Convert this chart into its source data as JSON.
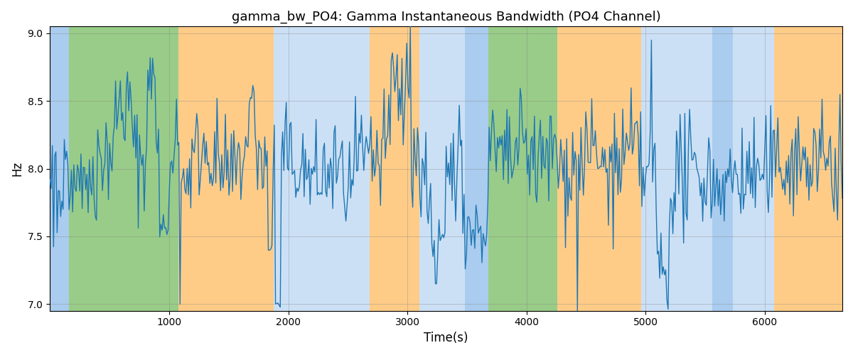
{
  "title": "gamma_bw_PO4: Gamma Instantaneous Bandwidth (PO4 Channel)",
  "xlabel": "Time(s)",
  "ylabel": "Hz",
  "xlim": [
    0,
    6650
  ],
  "ylim": [
    6.95,
    9.05
  ],
  "yticks": [
    7.0,
    7.5,
    8.0,
    8.5,
    9.0
  ],
  "xticks": [
    1000,
    2000,
    3000,
    4000,
    5000,
    6000
  ],
  "line_color": "#1f77b4",
  "line_width": 1.0,
  "bg_color": "#ffffff",
  "color_bands": [
    {
      "xstart": 0,
      "xend": 160,
      "color": "#aaccee"
    },
    {
      "xstart": 160,
      "xend": 1080,
      "color": "#99cc88"
    },
    {
      "xstart": 1080,
      "xend": 1880,
      "color": "#ffcc88"
    },
    {
      "xstart": 1880,
      "xend": 2680,
      "color": "#cce0f5"
    },
    {
      "xstart": 2680,
      "xend": 3100,
      "color": "#ffcc88"
    },
    {
      "xstart": 3100,
      "xend": 3480,
      "color": "#cce0f5"
    },
    {
      "xstart": 3480,
      "xend": 3680,
      "color": "#aaccee"
    },
    {
      "xstart": 3680,
      "xend": 4260,
      "color": "#99cc88"
    },
    {
      "xstart": 4260,
      "xend": 4960,
      "color": "#ffcc88"
    },
    {
      "xstart": 4960,
      "xend": 5560,
      "color": "#cce0f5"
    },
    {
      "xstart": 5560,
      "xend": 5730,
      "color": "#aaccee"
    },
    {
      "xstart": 5730,
      "xend": 6080,
      "color": "#cce0f5"
    },
    {
      "xstart": 6080,
      "xend": 6650,
      "color": "#ffcc88"
    }
  ],
  "seed": 42,
  "n_points": 665,
  "mean": 8.05,
  "std": 0.2
}
